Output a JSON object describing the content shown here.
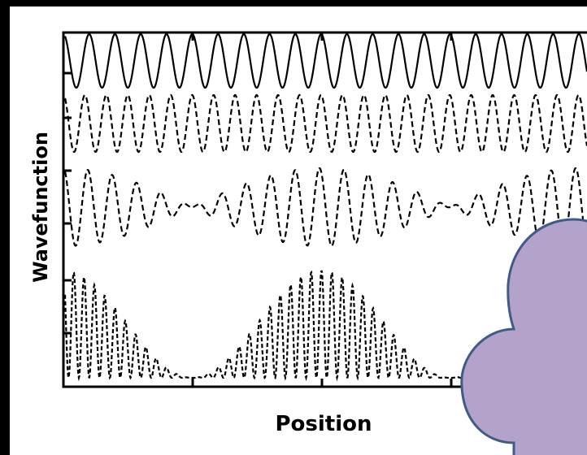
{
  "chart_data": {
    "type": "line",
    "xlabel": "Position",
    "ylabel": "Wavefunction"
  }
}
